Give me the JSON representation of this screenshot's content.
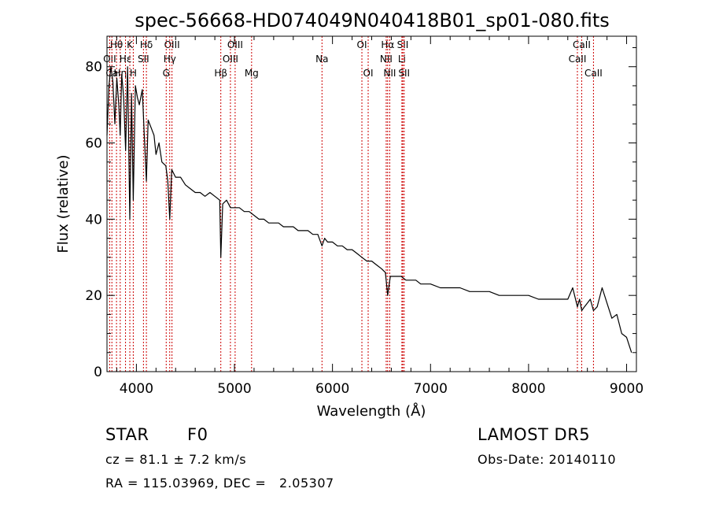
{
  "chart_data": {
    "type": "line",
    "title": "spec-56668-HD074049N040418B01_sp01-080.fits",
    "xlabel": "Wavelength (Å)",
    "ylabel": "Flux (relative)",
    "xlim": [
      3700,
      9100
    ],
    "ylim": [
      0,
      88
    ],
    "x_ticks": [
      4000,
      5000,
      6000,
      7000,
      8000,
      9000
    ],
    "y_ticks": [
      0,
      20,
      40,
      60,
      80
    ],
    "line_color": "#000000",
    "marker_color": "#cc0000",
    "series": [
      {
        "x": [
          3700,
          3720,
          3740,
          3760,
          3780,
          3800,
          3820,
          3835,
          3850,
          3870,
          3890,
          3910,
          3933,
          3950,
          3968,
          3990,
          4010,
          4030,
          4060,
          4080,
          4102,
          4120,
          4150,
          4180,
          4200,
          4230,
          4260,
          4300,
          4320,
          4340,
          4360,
          4400,
          4450,
          4500,
          4550,
          4600,
          4650,
          4700,
          4750,
          4800,
          4850,
          4861,
          4880,
          4920,
          4960,
          5000,
          5050,
          5100,
          5150,
          5200,
          5250,
          5300,
          5350,
          5400,
          5450,
          5500,
          5550,
          5600,
          5650,
          5700,
          5750,
          5800,
          5850,
          5893,
          5920,
          5950,
          6000,
          6050,
          6100,
          6150,
          6200,
          6250,
          6300,
          6350,
          6400,
          6450,
          6500,
          6540,
          6563,
          6590,
          6620,
          6650,
          6700,
          6750,
          6800,
          6850,
          6900,
          6950,
          7000,
          7100,
          7200,
          7300,
          7400,
          7500,
          7600,
          7700,
          7800,
          7900,
          8000,
          8100,
          8200,
          8300,
          8400,
          8450,
          8498,
          8520,
          8542,
          8570,
          8600,
          8630,
          8662,
          8700,
          8750,
          8800,
          8850,
          8900,
          8950,
          9000,
          9050
        ],
        "y": [
          62,
          75,
          80,
          76,
          65,
          77,
          70,
          62,
          78,
          72,
          58,
          80,
          40,
          73,
          45,
          75,
          72,
          70,
          74,
          62,
          50,
          66,
          64,
          62,
          57,
          60,
          55,
          54,
          50,
          40,
          53,
          51,
          51,
          49,
          48,
          47,
          47,
          46,
          47,
          46,
          45,
          30,
          44,
          45,
          43,
          43,
          43,
          42,
          42,
          41,
          40,
          40,
          39,
          39,
          39,
          38,
          38,
          38,
          37,
          37,
          37,
          36,
          36,
          33,
          35,
          34,
          34,
          33,
          33,
          32,
          32,
          31,
          30,
          29,
          29,
          28,
          27,
          26,
          20,
          25,
          25,
          25,
          25,
          24,
          24,
          24,
          23,
          23,
          23,
          22,
          22,
          22,
          21,
          21,
          21,
          20,
          20,
          20,
          20,
          19,
          19,
          19,
          19,
          22,
          17,
          19,
          16,
          17,
          18,
          19,
          16,
          17,
          22,
          18,
          14,
          15,
          10,
          9,
          5
        ]
      }
    ],
    "line_markers": [
      {
        "label": "Hθ",
        "x": 3797,
        "row": 0
      },
      {
        "label": "OII",
        "x": 3727,
        "row": 1
      },
      {
        "label": "Ca",
        "x": 3750,
        "row": 2
      },
      {
        "label": "Hη",
        "x": 3835,
        "row": 2
      },
      {
        "label": "K",
        "x": 3933,
        "row": 0
      },
      {
        "label": "Hε",
        "x": 3889,
        "row": 1
      },
      {
        "label": "H",
        "x": 3968,
        "row": 2
      },
      {
        "label": "Hδ",
        "x": 4102,
        "row": 0
      },
      {
        "label": "SII",
        "x": 4072,
        "row": 1
      },
      {
        "label": "OIII",
        "x": 4363,
        "row": 0
      },
      {
        "label": "Hγ",
        "x": 4340,
        "row": 1
      },
      {
        "label": "G",
        "x": 4304,
        "row": 2
      },
      {
        "label": "OIII",
        "x": 5007,
        "row": 0
      },
      {
        "label": "OIII",
        "x": 4959,
        "row": 1
      },
      {
        "label": "Hβ",
        "x": 4861,
        "row": 2
      },
      {
        "label": "Mg",
        "x": 5175,
        "row": 2
      },
      {
        "label": "Na",
        "x": 5893,
        "row": 1
      },
      {
        "label": "OI",
        "x": 6300,
        "row": 0
      },
      {
        "label": "OI",
        "x": 6364,
        "row": 2
      },
      {
        "label": "Hα",
        "x": 6563,
        "row": 0
      },
      {
        "label": "NII",
        "x": 6548,
        "row": 1
      },
      {
        "label": "NII",
        "x": 6584,
        "row": 2
      },
      {
        "label": "SII",
        "x": 6717,
        "row": 0
      },
      {
        "label": "Li",
        "x": 6708,
        "row": 1
      },
      {
        "label": "SII",
        "x": 6731,
        "row": 2
      },
      {
        "label": "CaII",
        "x": 8542,
        "row": 0
      },
      {
        "label": "CaII",
        "x": 8498,
        "row": 1
      },
      {
        "label": "CaII",
        "x": 8662,
        "row": 2
      }
    ]
  },
  "info": {
    "class_label": "STAR",
    "subclass": "F0",
    "survey": "LAMOST DR5",
    "cz": "cz = 81.1 ± 7.2 km/s",
    "obs_date": "Obs-Date: 20140110",
    "coords": "RA = 115.03969, DEC =   2.05307"
  }
}
